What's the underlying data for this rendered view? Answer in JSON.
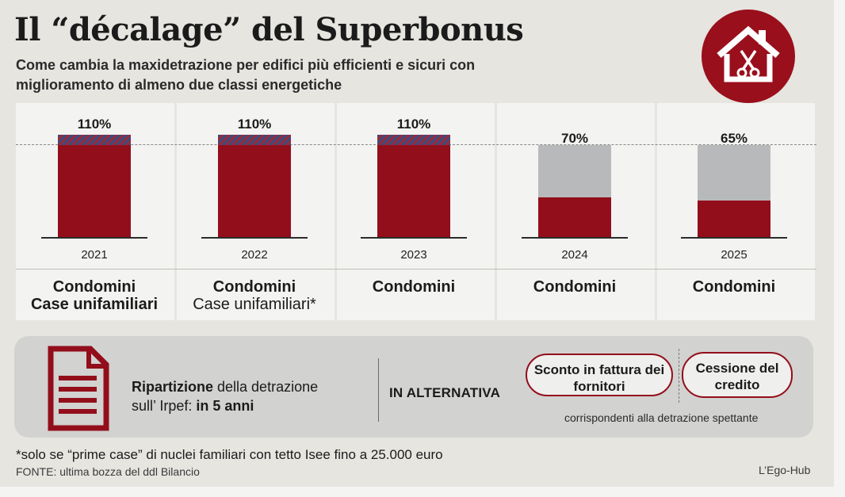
{
  "header": {
    "title": "Il “décalage” del Superbonus",
    "subtitle": "Come cambia la maxidetrazione per edifici più efficienti e sicuri con miglioramento di almeno due classi energetiche",
    "badge_icon": "house-scissors-icon"
  },
  "colors": {
    "accent": "#930e1b",
    "grey_bar": "#b8b9ba",
    "hatch_blue": "#3e4a7e"
  },
  "chart_data": {
    "type": "bar",
    "categories": [
      "2021",
      "2022",
      "2023",
      "2024",
      "2025"
    ],
    "values": [
      110,
      110,
      110,
      70,
      65
    ],
    "value_labels": [
      "110%",
      "110%",
      "110%",
      "70%",
      "65%"
    ],
    "reference_line": 100,
    "ylim": [
      0,
      120
    ],
    "title": "",
    "xlabel": "",
    "ylabel": "",
    "grid": false
  },
  "columns": [
    {
      "bold": "Condomini",
      "line2": "Case unifamiliari",
      "line2_bold": true
    },
    {
      "bold": "Condomini",
      "line2": "Case unifamiliari*",
      "line2_bold": false
    },
    {
      "bold": "Condomini",
      "line2": "",
      "line2_bold": false
    },
    {
      "bold": "Condomini",
      "line2": "",
      "line2_bold": false
    },
    {
      "bold": "Condomini",
      "line2": "",
      "line2_bold": false
    }
  ],
  "info": {
    "doc_icon": "document-icon",
    "ripartizione_bold": "Ripartizione",
    "ripartizione_text": " della detrazione",
    "ripartizione_line2": "sull’ Irpef: ",
    "ripartizione_years": "in 5 anni",
    "alternativa": "IN ALTERNATIVA",
    "option1": "Sconto in fattura dei fornitori",
    "option2": "Cessione del credito",
    "note": "corrispondenti alla detrazione spettante"
  },
  "footer": {
    "footnote": "*solo se “prime case” di nuclei familiari con tetto Isee fino a 25.000 euro",
    "source": "FONTE: ultima bozza del ddl Bilancio",
    "credit": "L’Ego-Hub"
  }
}
